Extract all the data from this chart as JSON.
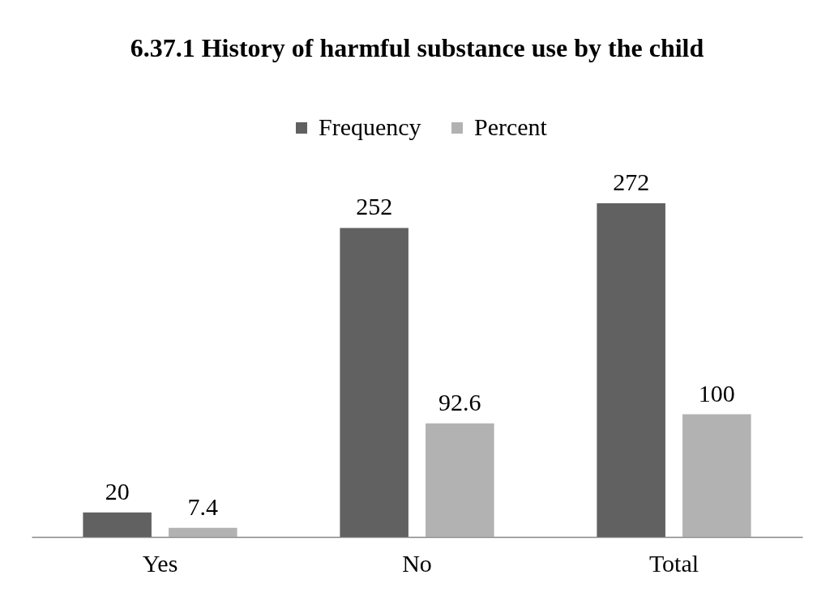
{
  "chart_data": {
    "type": "bar",
    "title": "6.37.1 History of harmful substance use by the child",
    "categories": [
      "Yes",
      "No",
      "Total"
    ],
    "series": [
      {
        "name": "Frequency",
        "color": "#616161",
        "values": [
          20,
          252,
          272
        ]
      },
      {
        "name": "Percent",
        "color": "#b2b2b2",
        "values": [
          7.4,
          92.6,
          100
        ]
      }
    ],
    "data_labels": true,
    "legend": "top"
  }
}
